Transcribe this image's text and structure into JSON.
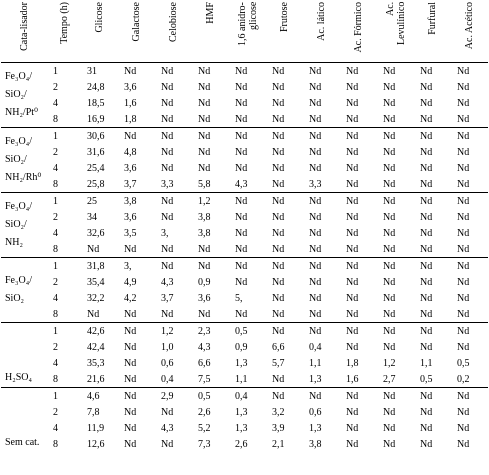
{
  "table": {
    "columns": [
      "Cata-lisador",
      "Tempo (h)",
      "Glicose",
      "Galactose",
      "Celobiose",
      "HMF",
      "1,6 anidro-glicose",
      "Frutose",
      "Ac. lático",
      "Ac. Fórmico",
      "Ac. Levulínico",
      "Furfural",
      "Ac. Acético"
    ],
    "groups": [
      {
        "catalyst": [
          "Fe₃O₄/",
          "SiO₂/",
          "NH₂/Pt⁰"
        ],
        "rows": [
          [
            "1",
            "31",
            "Nd",
            "Nd",
            "Nd",
            "Nd",
            "Nd",
            "Nd",
            "Nd",
            "Nd",
            "Nd",
            "Nd"
          ],
          [
            "2",
            "24,8",
            "3,6",
            "Nd",
            "Nd",
            "Nd",
            "Nd",
            "Nd",
            "Nd",
            "Nd",
            "Nd",
            "Nd"
          ],
          [
            "4",
            "18,5",
            "1,6",
            "Nd",
            "Nd",
            "Nd",
            "Nd",
            "Nd",
            "Nd",
            "Nd",
            "Nd",
            "Nd"
          ],
          [
            "8",
            "16,9",
            "1,8",
            "Nd",
            "Nd",
            "Nd",
            "Nd",
            "Nd",
            "Nd",
            "Nd",
            "Nd",
            "Nd"
          ]
        ]
      },
      {
        "catalyst": [
          "Fe₃O₄/",
          "SiO₂/",
          "NH₂/Rh⁰"
        ],
        "rows": [
          [
            "1",
            "30,6",
            "Nd",
            "Nd",
            "Nd",
            "Nd",
            "Nd",
            "Nd",
            "Nd",
            "Nd",
            "Nd",
            "Nd"
          ],
          [
            "2",
            "31,6",
            "4,8",
            "Nd",
            "Nd",
            "Nd",
            "Nd",
            "Nd",
            "Nd",
            "Nd",
            "Nd",
            "Nd"
          ],
          [
            "4",
            "25,4",
            "3,6",
            "Nd",
            "Nd",
            "Nd",
            "Nd",
            "Nd",
            "Nd",
            "Nd",
            "Nd",
            "Nd"
          ],
          [
            "8",
            "25,8",
            "3,7",
            "3,3",
            "5,8",
            "4,3",
            "Nd",
            "3,3",
            "Nd",
            "Nd",
            "Nd",
            "Nd"
          ]
        ]
      },
      {
        "catalyst": [
          "Fe₃O₄/",
          "SiO₂/",
          "NH₂"
        ],
        "rows": [
          [
            "1",
            "25",
            "3,8",
            "Nd",
            "1,2",
            "Nd",
            "Nd",
            "Nd",
            "Nd",
            "Nd",
            "Nd",
            "Nd"
          ],
          [
            "2",
            "34",
            "3,6",
            "Nd",
            "3,8",
            "Nd",
            "Nd",
            "Nd",
            "Nd",
            "Nd",
            "Nd",
            "Nd"
          ],
          [
            "4",
            "32,6",
            "3,5",
            "3,",
            "3,8",
            "Nd",
            "Nd",
            "Nd",
            "Nd",
            "Nd",
            "Nd",
            "Nd"
          ],
          [
            "8",
            "Nd",
            "Nd",
            "Nd",
            "Nd",
            "Nd",
            "Nd",
            "Nd",
            "Nd",
            "Nd",
            "Nd",
            "Nd"
          ]
        ]
      },
      {
        "catalyst": [
          "Fe₃O₄/",
          "SiO₂"
        ],
        "rows": [
          [
            "1",
            "31,8",
            "3,",
            "Nd",
            "Nd",
            "Nd",
            "Nd",
            "Nd",
            "Nd",
            "Nd",
            "Nd",
            "Nd"
          ],
          [
            "2",
            "35,4",
            "4,9",
            "4,3",
            "0,9",
            "Nd",
            "Nd",
            "Nd",
            "Nd",
            "Nd",
            "Nd",
            "Nd"
          ],
          [
            "4",
            "32,2",
            "4,2",
            "3,7",
            "3,6",
            "5,",
            "Nd",
            "Nd",
            "Nd",
            "Nd",
            "Nd",
            "Nd"
          ],
          [
            "8",
            "Nd",
            "Nd",
            "Nd",
            "Nd",
            "Nd",
            "Nd",
            "Nd",
            "Nd",
            "Nd",
            "Nd",
            "Nd"
          ]
        ]
      },
      {
        "catalyst": [
          "H₂SO₄"
        ],
        "rows": [
          [
            "1",
            "42,6",
            "Nd",
            "1,2",
            "2,3",
            "0,5",
            "Nd",
            "Nd",
            "Nd",
            "Nd",
            "Nd",
            "Nd"
          ],
          [
            "2",
            "42,4",
            "Nd",
            "1,0",
            "4,3",
            "0,9",
            "6,6",
            "0,4",
            "Nd",
            "Nd",
            "Nd",
            "Nd"
          ],
          [
            "4",
            "35,3",
            "Nd",
            "0,6",
            "6,6",
            "1,3",
            "5,7",
            "1,1",
            "1,8",
            "1,2",
            "1,1",
            "0,5"
          ],
          [
            "8",
            "21,6",
            "Nd",
            "0,4",
            "7,5",
            "1,1",
            "Nd",
            "1,3",
            "1,6",
            "2,7",
            "0,5",
            "0,2"
          ]
        ]
      },
      {
        "catalyst": [
          "Sem cat."
        ],
        "rows": [
          [
            "1",
            "4,6",
            "Nd",
            "2,9",
            "0,5",
            "0,4",
            "Nd",
            "Nd",
            "Nd",
            "Nd",
            "Nd",
            "Nd"
          ],
          [
            "2",
            "7,8",
            "Nd",
            "Nd",
            "2,6",
            "1,3",
            "3,2",
            "0,6",
            "Nd",
            "Nd",
            "Nd",
            "Nd"
          ],
          [
            "4",
            "11,9",
            "Nd",
            "4,3",
            "5,2",
            "1,3",
            "3,9",
            "1,3",
            "Nd",
            "Nd",
            "Nd",
            "Nd"
          ],
          [
            "8",
            "12,6",
            "Nd",
            "Nd",
            "7,3",
            "2,6",
            "2,1",
            "3,8",
            "Nd",
            "Nd",
            "Nd",
            "Nd"
          ]
        ]
      }
    ]
  }
}
